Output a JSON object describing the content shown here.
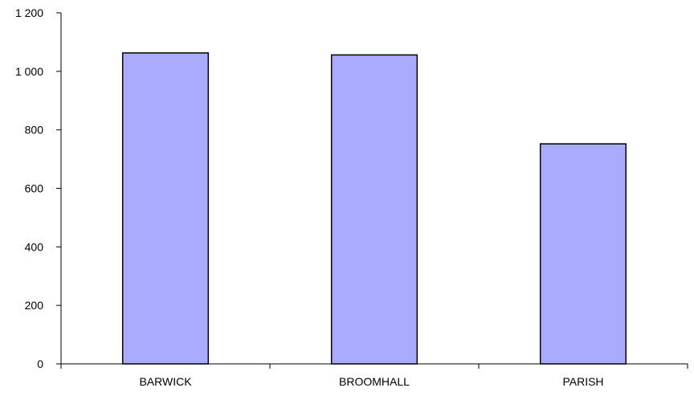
{
  "chart_data": {
    "type": "bar",
    "categories": [
      "BARWICK",
      "BROOMHALL",
      "PARISH"
    ],
    "values": [
      1063,
      1056,
      752
    ],
    "title": "",
    "xlabel": "",
    "ylabel": "",
    "ylim": [
      0,
      1200
    ],
    "yticks": [
      0,
      200,
      400,
      600,
      800,
      1000,
      1200
    ],
    "ytick_labels": [
      "0",
      "200",
      "400",
      "600",
      "800",
      "1 000",
      "1 200"
    ],
    "grid": false,
    "legend": "none",
    "colors": {
      "bar_fill": "#aaaaff",
      "bar_stroke": "#000000",
      "axis": "#000000"
    }
  }
}
